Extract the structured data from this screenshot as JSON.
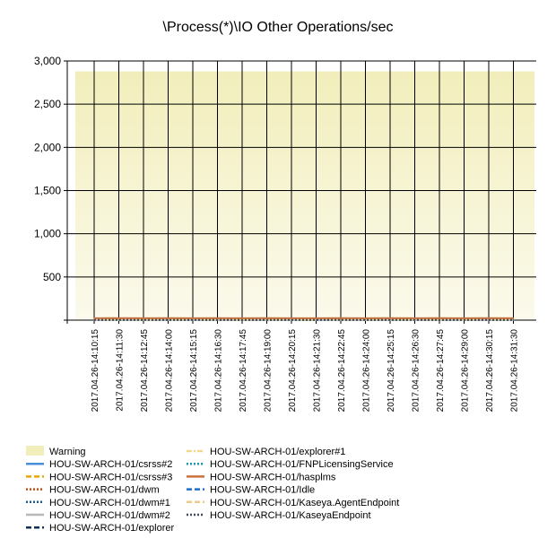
{
  "chart_data": {
    "type": "line",
    "title": "\\Process(*)\\IO Other Operations/sec",
    "xlabel": "",
    "ylabel": "",
    "ylim": [
      0,
      3000
    ],
    "y_ticks": [
      {
        "value": 500,
        "label": "500"
      },
      {
        "value": 1000,
        "label": "1,000"
      },
      {
        "value": 1500,
        "label": "1,500"
      },
      {
        "value": 2000,
        "label": "2,000"
      },
      {
        "value": 2500,
        "label": "2,500"
      },
      {
        "value": 3000,
        "label": "3,000"
      }
    ],
    "x_labels": [
      "2017.04.26-14:10:15",
      "2017.04.26-14:11:30",
      "2017.04.26-14:12:45",
      "2017.04.26-14:14:00",
      "2017.04.26-14:15:15",
      "2017.04.26-14:16:30",
      "2017.04.26-14:17:45",
      "2017.04.26-14:19:00",
      "2017.04.26-14:20:15",
      "2017.04.26-14:21:30",
      "2017.04.26-14:22:45",
      "2017.04.26-14:24:00",
      "2017.04.26-14:25:15",
      "2017.04.26-14:26:30",
      "2017.04.26-14:27:45",
      "2017.04.26-14:29:00",
      "2017.04.26-14:30:15",
      "2017.04.26-14:31:30"
    ],
    "warning_band": {
      "name": "Warning",
      "from": 0,
      "to": 2880,
      "color_top": "#f2eebb",
      "color_bottom": "#fbfaec"
    },
    "series": [
      {
        "name": "HOU-SW-ARCH-01/csrss#2",
        "color": "#4a90d9",
        "dash": "solid",
        "values": [
          0,
          0,
          0,
          0,
          0,
          0,
          0,
          0,
          0,
          0,
          0,
          0,
          0,
          0,
          0,
          0,
          0,
          0
        ]
      },
      {
        "name": "HOU-SW-ARCH-01/csrss#3",
        "color": "#e8a800",
        "dash": "dashed",
        "values": [
          0,
          0,
          0,
          0,
          0,
          0,
          0,
          0,
          0,
          0,
          0,
          0,
          0,
          0,
          0,
          0,
          0,
          0
        ]
      },
      {
        "name": "HOU-SW-ARCH-01/dwm",
        "color": "#cc4a10",
        "dash": "dotted",
        "values": [
          10,
          11,
          10,
          12,
          10,
          11,
          10,
          10,
          11,
          10,
          10,
          12,
          10,
          11,
          10,
          10,
          11,
          10
        ]
      },
      {
        "name": "HOU-SW-ARCH-01/dwm#1",
        "color": "#1a5a9a",
        "dash": "dotted",
        "values": [
          0,
          0,
          0,
          0,
          0,
          0,
          0,
          0,
          0,
          0,
          0,
          0,
          0,
          0,
          0,
          0,
          0,
          0
        ]
      },
      {
        "name": "HOU-SW-ARCH-01/dwm#2",
        "color": "#b8b8b8",
        "dash": "solid",
        "values": [
          0,
          0,
          0,
          0,
          0,
          0,
          0,
          0,
          0,
          0,
          0,
          0,
          0,
          0,
          0,
          0,
          0,
          0
        ]
      },
      {
        "name": "HOU-SW-ARCH-01/explorer",
        "color": "#0b2f55",
        "dash": "dashed",
        "values": [
          5,
          5,
          5,
          5,
          5,
          5,
          5,
          5,
          5,
          5,
          5,
          5,
          5,
          5,
          5,
          5,
          5,
          5
        ]
      },
      {
        "name": "HOU-SW-ARCH-01/explorer#1",
        "color": "#f2d98a",
        "dash": "dashdot",
        "values": [
          0,
          0,
          0,
          0,
          0,
          0,
          0,
          0,
          0,
          0,
          0,
          0,
          0,
          0,
          0,
          0,
          0,
          0
        ]
      },
      {
        "name": "HOU-SW-ARCH-01/FNPLicensingService",
        "color": "#1a9aa8",
        "dash": "dotted",
        "values": [
          0,
          0,
          0,
          0,
          0,
          0,
          0,
          0,
          0,
          0,
          0,
          0,
          0,
          0,
          0,
          0,
          0,
          0
        ]
      },
      {
        "name": "HOU-SW-ARCH-01/hasplms",
        "color": "#c9703c",
        "dash": "solid",
        "values": [
          22,
          23,
          22,
          24,
          22,
          23,
          22,
          23,
          22,
          22,
          23,
          22,
          24,
          22,
          23,
          22,
          23,
          22
        ]
      },
      {
        "name": "HOU-SW-ARCH-01/Idle",
        "color": "#1f6fc8",
        "dash": "dashed",
        "values": [
          0,
          0,
          0,
          0,
          0,
          0,
          0,
          0,
          0,
          0,
          0,
          0,
          0,
          0,
          0,
          0,
          0,
          0
        ]
      },
      {
        "name": "HOU-SW-ARCH-01/Kaseya.AgentEndpoint",
        "color": "#eec98a",
        "dash": "dashed",
        "values": [
          3,
          3,
          3,
          3,
          3,
          3,
          3,
          3,
          3,
          3,
          3,
          3,
          3,
          3,
          3,
          3,
          3,
          3
        ]
      },
      {
        "name": "HOU-SW-ARCH-01/KaseyaEndpoint",
        "color": "#3d4d5e",
        "dash": "dotted",
        "values": [
          2,
          2,
          2,
          2,
          2,
          2,
          2,
          2,
          2,
          2,
          2,
          2,
          2,
          2,
          2,
          2,
          2,
          2
        ]
      }
    ],
    "grid": true,
    "legend_position": "bottom"
  }
}
